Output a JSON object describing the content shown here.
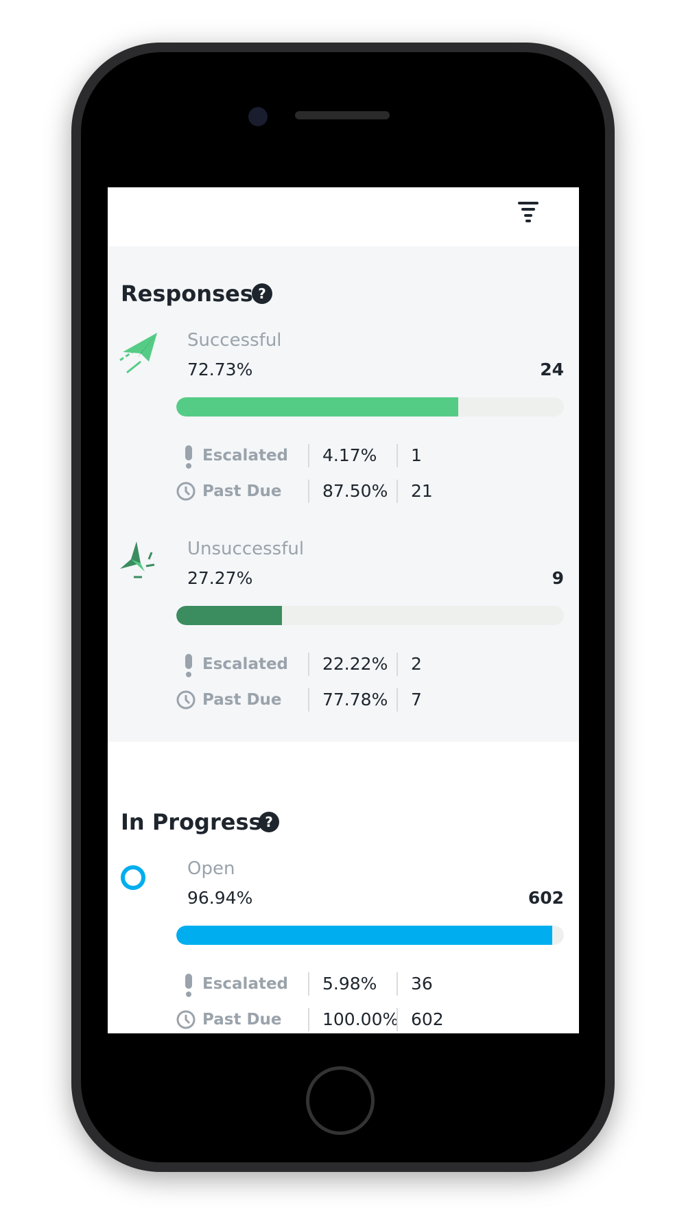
{
  "sections": [
    {
      "title": "Responses",
      "xlim": [
        0,
        100
      ],
      "items": [
        {
          "label": "Successful",
          "percent": {
            "value": 72.73,
            "label": "72.73%"
          },
          "count": 24,
          "color": "#55cc85",
          "details": [
            {
              "label": "Escalated",
              "percent": "4.17%",
              "count": 1
            },
            {
              "label": "Past Due",
              "percent": "87.50%",
              "count": 21
            }
          ]
        },
        {
          "label": "Unsuccessful",
          "percent": {
            "value": 27.27,
            "label": "27.27%"
          },
          "count": 9,
          "color": "#3b8c5f",
          "details": [
            {
              "label": "Escalated",
              "percent": "22.22%",
              "count": 2
            },
            {
              "label": "Past Due",
              "percent": "77.78%",
              "count": 7
            }
          ]
        }
      ]
    },
    {
      "title": "In Progress",
      "xlim": [
        0,
        100
      ],
      "items": [
        {
          "label": "Open",
          "percent": {
            "value": 96.94,
            "label": "96.94%"
          },
          "count": 602,
          "color": "#00aeef",
          "details": [
            {
              "label": "Escalated",
              "percent": "5.98%",
              "count": 36
            },
            {
              "label": "Past Due",
              "percent": "100.00%",
              "count": 602
            }
          ]
        }
      ]
    }
  ]
}
